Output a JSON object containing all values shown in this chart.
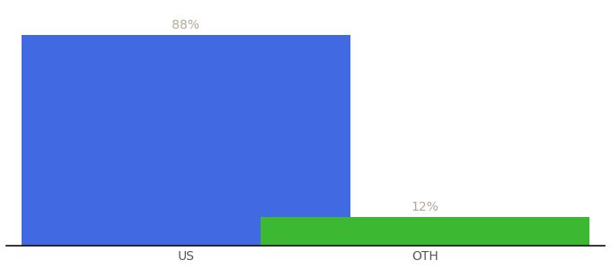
{
  "categories": [
    "US",
    "OTH"
  ],
  "values": [
    88,
    12
  ],
  "bar_colors": [
    "#4169e1",
    "#3cb832"
  ],
  "label_color": "#b5a898",
  "bar_labels": [
    "88%",
    "12%"
  ],
  "ylim": [
    0,
    100
  ],
  "background_color": "#ffffff",
  "label_fontsize": 10,
  "tick_fontsize": 10,
  "bar_width": 0.55,
  "x_positions": [
    0.3,
    0.7
  ],
  "xlim": [
    0.0,
    1.0
  ]
}
